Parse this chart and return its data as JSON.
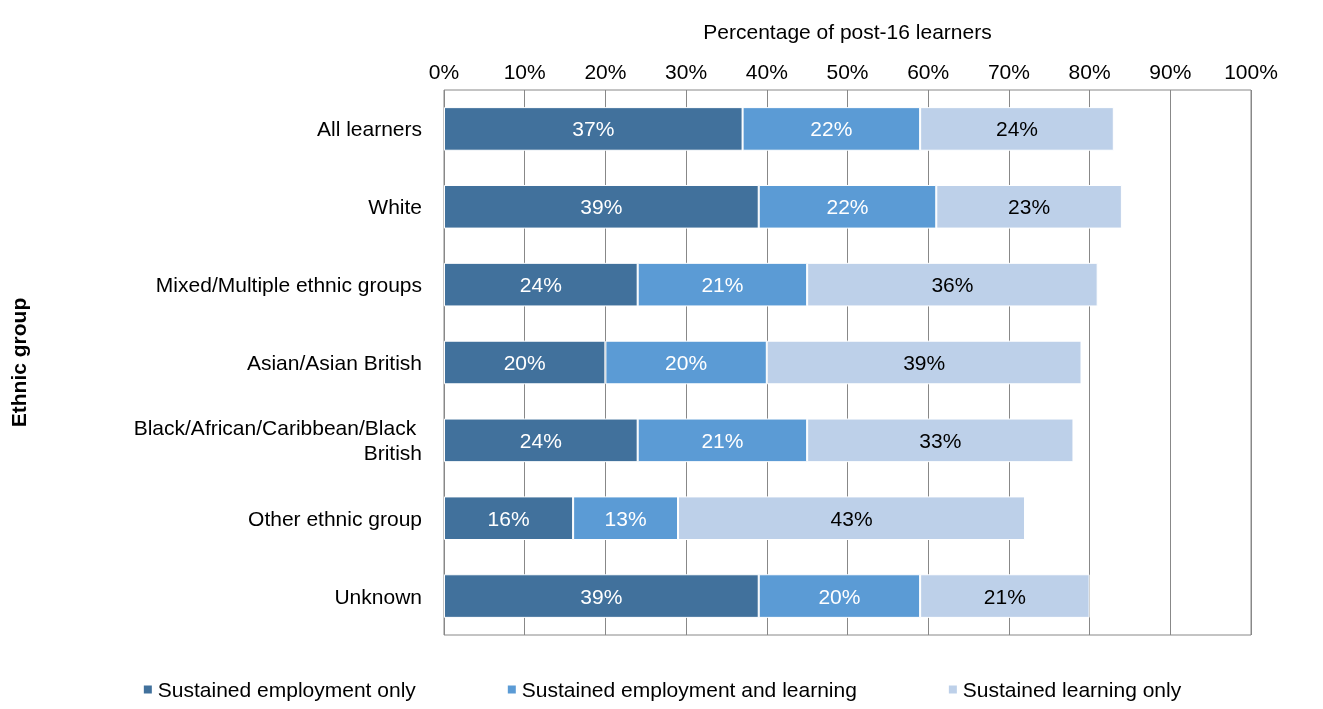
{
  "chart_data": {
    "type": "bar",
    "orientation": "horizontal",
    "stacked": true,
    "xlabel": "Percentage of post-16 learners",
    "ylabel": "Ethnic group",
    "categories": [
      "All learners",
      "White",
      "Mixed/Multiple ethnic groups",
      "Asian/Asian British",
      "Black/African/Caribbean/Black British",
      "Other ethnic group",
      "Unknown"
    ],
    "series": [
      {
        "name": "Sustained employment only",
        "color": "#41719c",
        "values": [
          37,
          39,
          24,
          20,
          24,
          16,
          39
        ],
        "value_labels": [
          "37%",
          "39%",
          "24%",
          "20%",
          "24%",
          "16%",
          "39%"
        ]
      },
      {
        "name": "Sustained employment and learning",
        "color": "#5b9bd5",
        "values": [
          22,
          22,
          21,
          20,
          21,
          13,
          20
        ],
        "value_labels": [
          "22%",
          "22%",
          "21%",
          "20%",
          "21%",
          "13%",
          "20%"
        ]
      },
      {
        "name": "Sustained learning only",
        "color": "#bdd0e9",
        "values": [
          24,
          23,
          36,
          39,
          33,
          43,
          21
        ],
        "value_labels": [
          "24%",
          "23%",
          "36%",
          "39%",
          "33%",
          "43%",
          "21%"
        ]
      }
    ],
    "xlim": [
      0,
      100
    ],
    "xticks": [
      {
        "value": 0,
        "label": "0%"
      },
      {
        "value": 10,
        "label": "10%"
      },
      {
        "value": 20,
        "label": "20%"
      },
      {
        "value": 30,
        "label": "30%"
      },
      {
        "value": 40,
        "label": "40%"
      },
      {
        "value": 50,
        "label": "50%"
      },
      {
        "value": 60,
        "label": "60%"
      },
      {
        "value": 70,
        "label": "70%"
      },
      {
        "value": 80,
        "label": "80%"
      },
      {
        "value": 90,
        "label": "90%"
      },
      {
        "value": 100,
        "label": "100%"
      }
    ],
    "grid": "x",
    "legend": "bottom"
  }
}
